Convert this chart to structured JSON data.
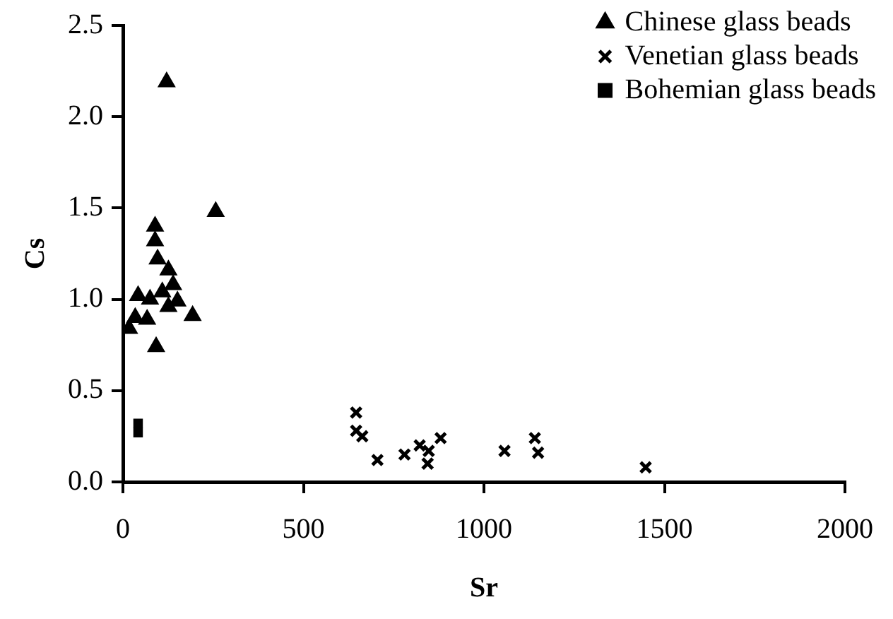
{
  "chart_data": {
    "type": "scatter",
    "xlabel": "Sr",
    "ylabel": "Cs",
    "xlim": [
      0,
      2000
    ],
    "xticks": [
      0,
      500,
      1000,
      1500,
      2000
    ],
    "ylim": [
      0,
      2.5
    ],
    "yticks": [
      {
        "value": 0,
        "label": "0.0"
      },
      {
        "value": 0.5,
        "label": "0.5"
      },
      {
        "value": 1,
        "label": "1.0"
      },
      {
        "value": 1.5,
        "label": "1.5"
      },
      {
        "value": 2,
        "label": "2.0"
      },
      {
        "value": 2.5,
        "label": "2.5"
      }
    ],
    "grid": false,
    "legend": "top right",
    "series": [
      {
        "name": "Chinese glass beads",
        "color": "#000000",
        "marker": "triangle",
        "x": [
          121,
          257,
          89,
          89,
          96,
          126,
          139,
          42,
          75,
          109,
          151,
          34,
          17,
          67,
          193,
          92,
          126
        ],
        "values": [
          2.19,
          1.48,
          1.4,
          1.32,
          1.22,
          1.16,
          1.08,
          1.02,
          1.0,
          1.04,
          0.99,
          0.9,
          0.84,
          0.89,
          0.91,
          0.74,
          0.96
        ]
      },
      {
        "name": "Venetian glass beads",
        "color": "#000000",
        "marker": "cross",
        "x": [
          646,
          646,
          663,
          705,
          780,
          822,
          844,
          880,
          847,
          1057,
          1141,
          1150,
          1448
        ],
        "values": [
          0.38,
          0.28,
          0.25,
          0.12,
          0.15,
          0.2,
          0.1,
          0.24,
          0.17,
          0.17,
          0.24,
          0.16,
          0.08
        ]
      },
      {
        "name": "Bohemian glass beads",
        "color": "#000000",
        "marker": "square",
        "x": [
          42,
          42
        ],
        "values": [
          0.32,
          0.27
        ]
      }
    ]
  }
}
